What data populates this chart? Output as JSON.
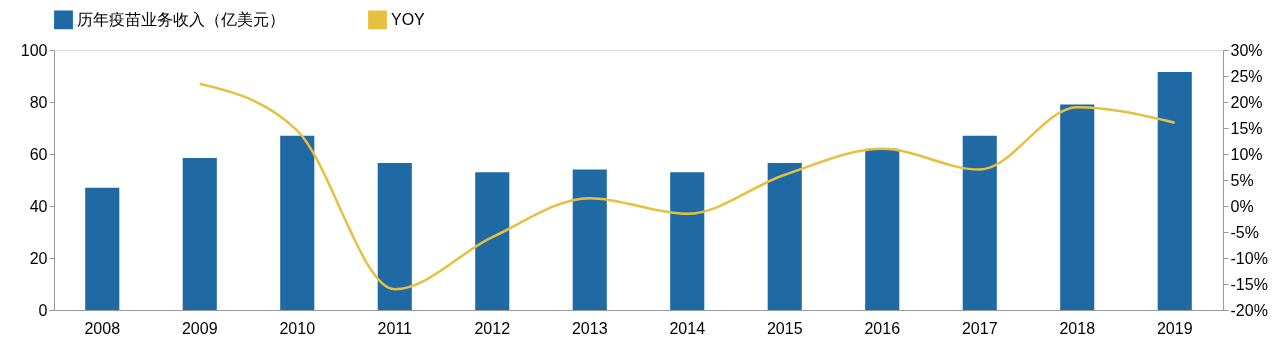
{
  "chart_data": {
    "type": "bar",
    "categories": [
      "2008",
      "2009",
      "2010",
      "2011",
      "2012",
      "2013",
      "2014",
      "2015",
      "2016",
      "2017",
      "2018",
      "2019"
    ],
    "series": [
      {
        "name": "历年疫苗业务收入（亿美元）",
        "color": "#1f6aa5",
        "values": [
          47,
          58.5,
          67,
          56.5,
          53,
          54,
          53,
          56.5,
          62,
          67,
          79,
          91.5
        ]
      },
      {
        "name": "YOY",
        "type": "line",
        "axis": "y2",
        "color": "#e8c040",
        "values": [
          null,
          23.5,
          14.5,
          -16,
          -6,
          1.5,
          -1.5,
          6,
          11,
          7,
          19,
          16
        ]
      }
    ],
    "ylim": [
      0,
      100
    ],
    "yticks": [
      0,
      20,
      40,
      60,
      80,
      100
    ],
    "y2lim": [
      -20,
      30
    ],
    "y2ticks": [
      {
        "value": -20,
        "label": "-20%"
      },
      {
        "value": -15,
        "label": "-15%"
      },
      {
        "value": -10,
        "label": "-10%"
      },
      {
        "value": -5,
        "label": "-5%"
      },
      {
        "value": 0,
        "label": "0%"
      },
      {
        "value": 5,
        "label": "5%"
      },
      {
        "value": 10,
        "label": "10%"
      },
      {
        "value": 15,
        "label": "15%"
      },
      {
        "value": 20,
        "label": "20%"
      },
      {
        "value": 25,
        "label": "25%"
      },
      {
        "value": 30,
        "label": "30%"
      }
    ],
    "legend": "top",
    "grid": false
  }
}
